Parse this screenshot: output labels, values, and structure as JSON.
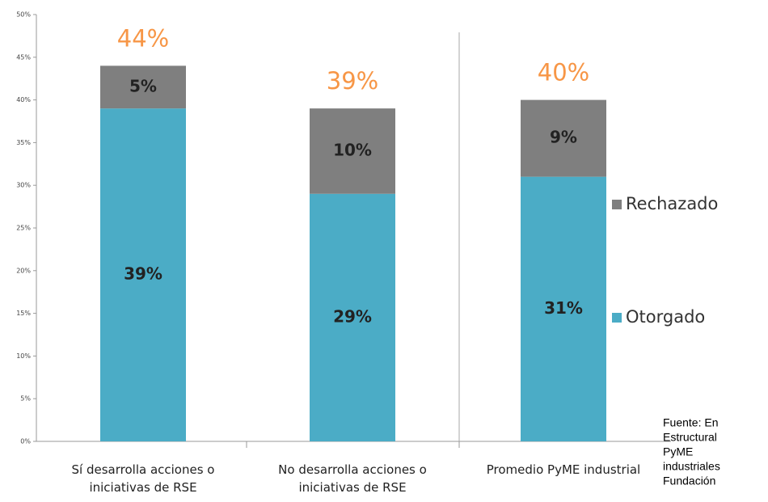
{
  "chart_data": {
    "type": "stacked_bar",
    "categories": [
      "Sí desarrolla acciones o iniciativas de RSE",
      "No desarrolla acciones o iniciativas de RSE",
      "Promedio PyME industrial"
    ],
    "series": [
      {
        "name": "Otorgado",
        "color": "#4bacc6",
        "values": [
          39,
          29,
          31
        ],
        "value_labels": [
          "39%",
          "29%",
          "31%"
        ]
      },
      {
        "name": "Rechazado",
        "color": "#7f7f7f",
        "values": [
          5,
          10,
          9
        ],
        "value_labels": [
          "5%",
          "10%",
          "9%"
        ]
      }
    ],
    "annotations": [
      "44%",
      "39%",
      "40%"
    ],
    "annotation_color": "#f79646",
    "source_lines": [
      "Fuente: En",
      "Estructural",
      "PyME",
      "industriales",
      "Fundación"
    ],
    "ylim": [
      0,
      50
    ],
    "yticks": [
      {
        "value": 0,
        "label": "0%"
      },
      {
        "value": 5,
        "label": "5%"
      },
      {
        "value": 10,
        "label": "10%"
      },
      {
        "value": 15,
        "label": "15%"
      },
      {
        "value": 20,
        "label": "20%"
      },
      {
        "value": 25,
        "label": "25%"
      },
      {
        "value": 30,
        "label": "30%"
      },
      {
        "value": 35,
        "label": "35%"
      },
      {
        "value": 40,
        "label": "40%"
      },
      {
        "value": 45,
        "label": "45%"
      },
      {
        "value": 50,
        "label": "50%"
      }
    ],
    "legend": "right"
  }
}
